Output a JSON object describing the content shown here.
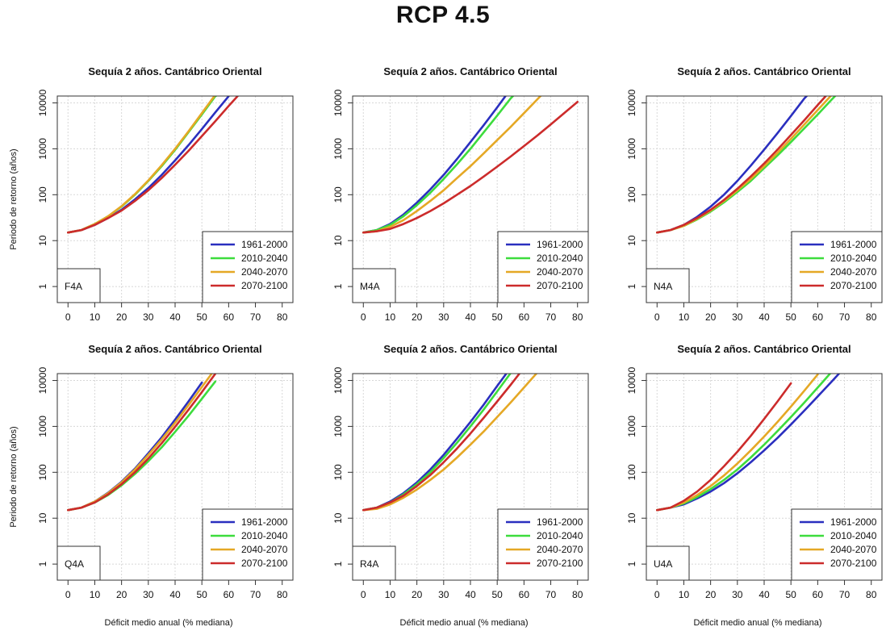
{
  "page": {
    "title": "RCP 4.5",
    "ylabel": "Periodo de retorno (años)",
    "xlabel": "Déficit medio anual (% mediana)"
  },
  "colors": {
    "1961-2000": "#2a2fbf",
    "2010-2040": "#3ddc3d",
    "2040-2070": "#e5a825",
    "2070-2100": "#cc2b2b"
  },
  "chart_data": [
    {
      "type": "line",
      "title": "Sequía 2 años. Cantábrico Oriental",
      "code": "F4A",
      "x_ticks": [
        0,
        10,
        20,
        30,
        40,
        50,
        60,
        70,
        80
      ],
      "y_ticks": [
        1,
        10,
        100,
        1000,
        10000
      ],
      "xlim": [
        -4,
        84
      ],
      "ylog_lim": [
        -0.35,
        4.15
      ],
      "scale": "log-y",
      "legend_position": "bottom-right",
      "series": [
        {
          "name": "1961-2000",
          "x": [
            0,
            5,
            10,
            15,
            20,
            25,
            30,
            35,
            40,
            45,
            50,
            55,
            60
          ],
          "y": [
            15,
            17,
            22,
            31,
            47,
            79,
            140,
            270,
            560,
            1200,
            2700,
            6200,
            14000
          ]
        },
        {
          "name": "2010-2040",
          "x": [
            0,
            5,
            10,
            15,
            20,
            25,
            30,
            35,
            40,
            45,
            50,
            55,
            60
          ],
          "y": [
            15,
            17,
            23,
            34,
            55,
            100,
            200,
            420,
            950,
            2300,
            5600,
            14000,
            20000
          ]
        },
        {
          "name": "2040-2070",
          "x": [
            0,
            5,
            10,
            15,
            20,
            25,
            30,
            35,
            40,
            45,
            50,
            55,
            60
          ],
          "y": [
            15,
            17,
            23,
            34,
            56,
            103,
            205,
            440,
            1000,
            2400,
            6000,
            15000,
            20000
          ]
        },
        {
          "name": "2070-2100",
          "x": [
            0,
            5,
            10,
            15,
            20,
            25,
            30,
            35,
            40,
            45,
            50,
            55,
            60,
            65
          ],
          "y": [
            15,
            17,
            22,
            31,
            45,
            73,
            125,
            230,
            450,
            900,
            1900,
            4000,
            8600,
            18000
          ]
        }
      ]
    },
    {
      "type": "line",
      "title": "Sequía 2 años. Cantábrico Oriental",
      "code": "M4A",
      "x_ticks": [
        0,
        10,
        20,
        30,
        40,
        50,
        60,
        70,
        80
      ],
      "y_ticks": [
        1,
        10,
        100,
        1000,
        10000
      ],
      "xlim": [
        -4,
        84
      ],
      "ylog_lim": [
        -0.35,
        4.15
      ],
      "scale": "log-y",
      "legend_position": "bottom-right",
      "series": [
        {
          "name": "1961-2000",
          "x": [
            0,
            5,
            10,
            15,
            20,
            25,
            30,
            35,
            40,
            45,
            50,
            55
          ],
          "y": [
            15,
            17,
            23,
            37,
            67,
            130,
            270,
            600,
            1400,
            3300,
            8000,
            20000
          ]
        },
        {
          "name": "2010-2040",
          "x": [
            0,
            5,
            10,
            15,
            20,
            25,
            30,
            35,
            40,
            45,
            50,
            55,
            60
          ],
          "y": [
            15,
            17,
            22,
            34,
            59,
            110,
            220,
            460,
            1000,
            2300,
            5300,
            12500,
            25000
          ]
        },
        {
          "name": "2040-2070",
          "x": [
            0,
            5,
            10,
            15,
            20,
            25,
            30,
            35,
            40,
            45,
            50,
            55,
            60,
            65,
            70
          ],
          "y": [
            15,
            16,
            20,
            28,
            44,
            73,
            125,
            230,
            420,
            800,
            1550,
            3000,
            6000,
            12000,
            24000
          ]
        },
        {
          "name": "2070-2100",
          "x": [
            0,
            5,
            10,
            15,
            20,
            25,
            30,
            35,
            40,
            45,
            50,
            55,
            60,
            65,
            70,
            75,
            80
          ],
          "y": [
            15,
            16,
            18,
            23,
            31,
            44,
            65,
            100,
            155,
            250,
            410,
            680,
            1150,
            1950,
            3400,
            6000,
            10500
          ]
        }
      ]
    },
    {
      "type": "line",
      "title": "Sequía 2 años. Cantábrico Oriental",
      "code": "N4A",
      "x_ticks": [
        0,
        10,
        20,
        30,
        40,
        50,
        60,
        70,
        80
      ],
      "y_ticks": [
        1,
        10,
        100,
        1000,
        10000
      ],
      "xlim": [
        -4,
        84
      ],
      "ylog_lim": [
        -0.35,
        4.15
      ],
      "scale": "log-y",
      "legend_position": "bottom-right",
      "series": [
        {
          "name": "1961-2000",
          "x": [
            0,
            5,
            10,
            15,
            20,
            25,
            30,
            35,
            40,
            45,
            50,
            55,
            60
          ],
          "y": [
            15,
            17,
            22,
            33,
            55,
            100,
            200,
            430,
            960,
            2200,
            5200,
            12500,
            25000
          ]
        },
        {
          "name": "2010-2040",
          "x": [
            0,
            5,
            10,
            15,
            20,
            25,
            30,
            35,
            40,
            45,
            50,
            55,
            60,
            65,
            70
          ],
          "y": [
            15,
            17,
            21,
            29,
            43,
            68,
            115,
            200,
            380,
            720,
            1400,
            2800,
            5600,
            11500,
            23000
          ]
        },
        {
          "name": "2040-2070",
          "x": [
            0,
            5,
            10,
            15,
            20,
            25,
            30,
            35,
            40,
            45,
            50,
            55,
            60,
            65,
            70
          ],
          "y": [
            15,
            17,
            21,
            30,
            45,
            73,
            125,
            220,
            420,
            820,
            1650,
            3400,
            7000,
            14500,
            29000
          ]
        },
        {
          "name": "2070-2100",
          "x": [
            0,
            5,
            10,
            15,
            20,
            25,
            30,
            35,
            40,
            45,
            50,
            55,
            60,
            65
          ],
          "y": [
            15,
            17,
            22,
            31,
            47,
            77,
            135,
            250,
            480,
            960,
            2000,
            4200,
            9000,
            19000
          ]
        }
      ]
    },
    {
      "type": "line",
      "title": "Sequía 2 años. Cantábrico Oriental",
      "code": "Q4A",
      "x_ticks": [
        0,
        10,
        20,
        30,
        40,
        50,
        60,
        70,
        80
      ],
      "y_ticks": [
        1,
        10,
        100,
        1000,
        10000
      ],
      "xlim": [
        -4,
        84
      ],
      "ylog_lim": [
        -0.35,
        4.15
      ],
      "scale": "log-y",
      "legend_position": "bottom-right",
      "series": [
        {
          "name": "1961-2000",
          "x": [
            0,
            5,
            10,
            15,
            20,
            25,
            30,
            35,
            40,
            45,
            50
          ],
          "y": [
            15,
            17,
            23,
            36,
            62,
            120,
            260,
            580,
            1400,
            3500,
            9000
          ]
        },
        {
          "name": "2010-2040",
          "x": [
            0,
            5,
            10,
            15,
            20,
            25,
            30,
            35,
            40,
            45,
            50,
            55
          ],
          "y": [
            15,
            17,
            22,
            32,
            52,
            92,
            175,
            350,
            760,
            1700,
            4000,
            9500
          ]
        },
        {
          "name": "2040-2070",
          "x": [
            0,
            5,
            10,
            15,
            20,
            25,
            30,
            35,
            40,
            45,
            50,
            55
          ],
          "y": [
            15,
            17,
            23,
            35,
            60,
            115,
            240,
            520,
            1200,
            2900,
            7200,
            18000
          ]
        },
        {
          "name": "2070-2100",
          "x": [
            0,
            5,
            10,
            15,
            20,
            25,
            30,
            35,
            40,
            45,
            50,
            55
          ],
          "y": [
            15,
            17,
            22,
            33,
            55,
            100,
            200,
            430,
            980,
            2300,
            5600,
            14000
          ]
        }
      ]
    },
    {
      "type": "line",
      "title": "Sequía 2 años. Cantábrico Oriental",
      "code": "R4A",
      "x_ticks": [
        0,
        10,
        20,
        30,
        40,
        50,
        60,
        70,
        80
      ],
      "y_ticks": [
        1,
        10,
        100,
        1000,
        10000
      ],
      "xlim": [
        -4,
        84
      ],
      "ylog_lim": [
        -0.35,
        4.15
      ],
      "scale": "log-y",
      "legend_position": "bottom-right",
      "series": [
        {
          "name": "1961-2000",
          "x": [
            0,
            5,
            10,
            15,
            20,
            25,
            30,
            35,
            40,
            45,
            50,
            55
          ],
          "y": [
            15,
            17,
            23,
            35,
            60,
            115,
            240,
            540,
            1250,
            3000,
            7600,
            19000
          ]
        },
        {
          "name": "2010-2040",
          "x": [
            0,
            5,
            10,
            15,
            20,
            25,
            30,
            35,
            40,
            45,
            50,
            55
          ],
          "y": [
            15,
            17,
            22,
            33,
            55,
            100,
            205,
            440,
            1000,
            2350,
            5800,
            14500
          ]
        },
        {
          "name": "2040-2070",
          "x": [
            0,
            5,
            10,
            15,
            20,
            25,
            30,
            35,
            40,
            45,
            50,
            55,
            60,
            65,
            70
          ],
          "y": [
            15,
            16,
            20,
            28,
            42,
            68,
            115,
            210,
            400,
            780,
            1600,
            3300,
            7000,
            15000,
            30000
          ]
        },
        {
          "name": "2070-2100",
          "x": [
            0,
            5,
            10,
            15,
            20,
            25,
            30,
            35,
            40,
            45,
            50,
            55,
            60
          ],
          "y": [
            15,
            17,
            22,
            31,
            50,
            87,
            165,
            330,
            700,
            1550,
            3500,
            8000,
            19000
          ]
        }
      ]
    },
    {
      "type": "line",
      "title": "Sequía 2 años. Cantábrico Oriental",
      "code": "U4A",
      "x_ticks": [
        0,
        10,
        20,
        30,
        40,
        50,
        60,
        70,
        80
      ],
      "y_ticks": [
        1,
        10,
        100,
        1000,
        10000
      ],
      "xlim": [
        -4,
        84
      ],
      "ylog_lim": [
        -0.35,
        4.15
      ],
      "scale": "log-y",
      "legend_position": "bottom-right",
      "series": [
        {
          "name": "1961-2000",
          "x": [
            0,
            5,
            10,
            15,
            20,
            25,
            30,
            35,
            40,
            45,
            50,
            55,
            60,
            65,
            70
          ],
          "y": [
            15,
            17,
            20,
            27,
            38,
            58,
            95,
            165,
            300,
            560,
            1100,
            2200,
            4500,
            9200,
            19000
          ]
        },
        {
          "name": "2010-2040",
          "x": [
            0,
            5,
            10,
            15,
            20,
            25,
            30,
            35,
            40,
            45,
            50,
            55,
            60,
            65
          ],
          "y": [
            15,
            17,
            21,
            29,
            43,
            68,
            115,
            210,
            400,
            790,
            1600,
            3300,
            7000,
            15000
          ]
        },
        {
          "name": "2040-2070",
          "x": [
            0,
            5,
            10,
            15,
            20,
            25,
            30,
            35,
            40,
            45,
            50,
            55,
            60
          ],
          "y": [
            15,
            17,
            22,
            32,
            50,
            85,
            155,
            300,
            600,
            1250,
            2700,
            6000,
            13500
          ]
        },
        {
          "name": "2070-2100",
          "x": [
            0,
            5,
            10,
            15,
            20,
            25,
            30,
            35,
            40,
            45,
            50
          ],
          "y": [
            15,
            17,
            24,
            38,
            68,
            135,
            280,
            620,
            1450,
            3500,
            8700
          ]
        }
      ]
    }
  ]
}
